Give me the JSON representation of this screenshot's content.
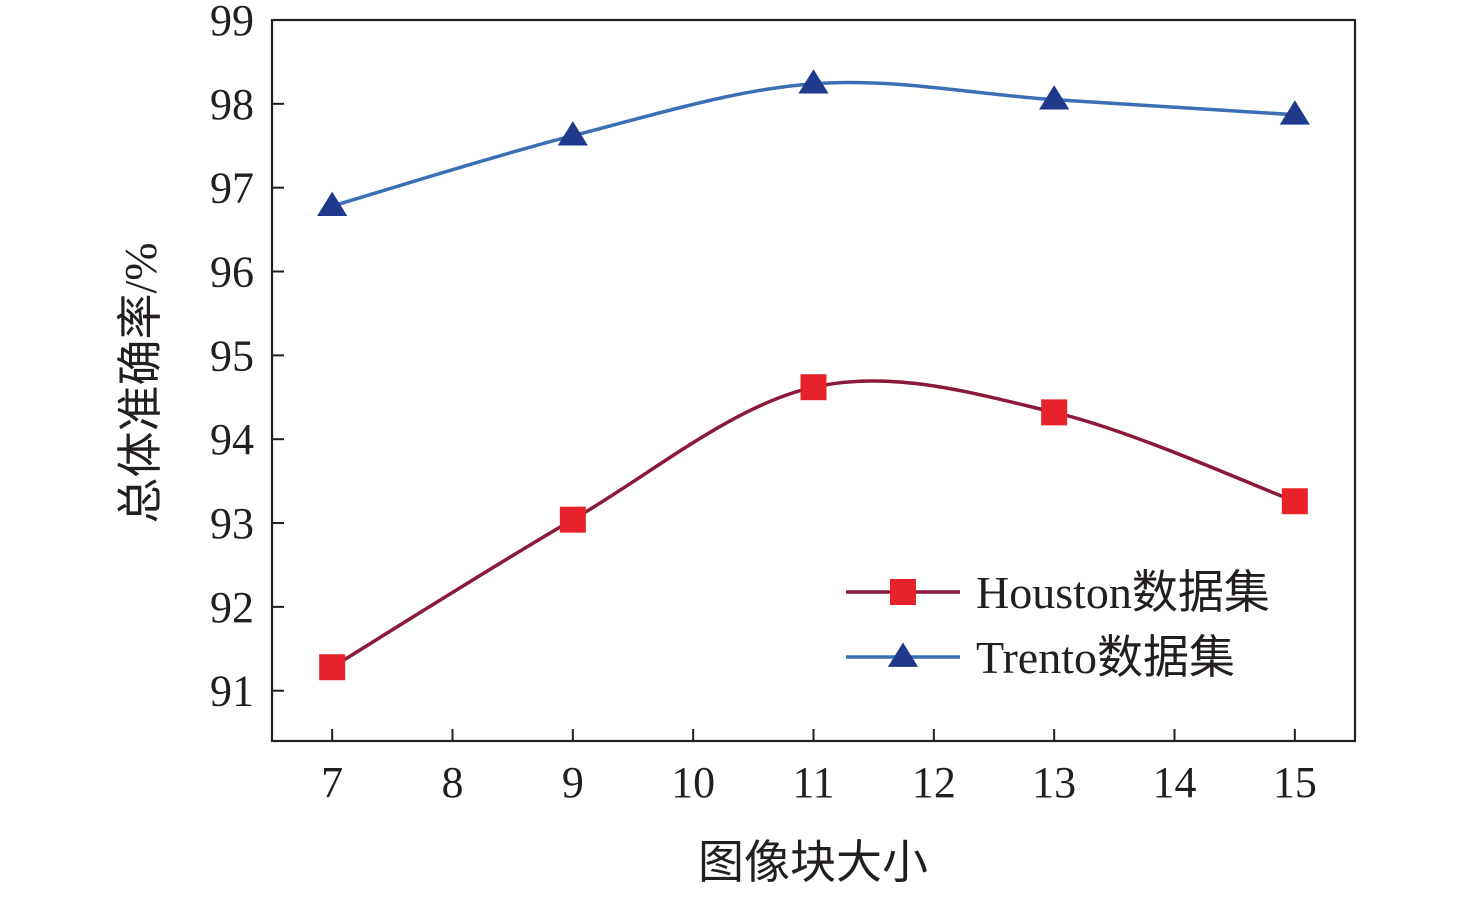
{
  "chart_data": {
    "type": "line",
    "title": "",
    "xlabel": "图像块大小",
    "ylabel": "总体准确率/%",
    "x": [
      7,
      9,
      11,
      13,
      15
    ],
    "x_ticks": [
      "7",
      "8",
      "9",
      "10",
      "11",
      "12",
      "13",
      "14",
      "15"
    ],
    "y_ticks": [
      "91",
      "92",
      "93",
      "94",
      "95",
      "96",
      "97",
      "98",
      "99"
    ],
    "xlim": [
      6.5,
      15.5
    ],
    "ylim": [
      90.4,
      99
    ],
    "grid": false,
    "legend_position": "bottom-right",
    "series": [
      {
        "name": "Houston数据集",
        "values": [
          91.28,
          93.04,
          94.62,
          94.32,
          93.26
        ],
        "color": "#8b1a3a",
        "marker": "square",
        "marker_color": "#e8222b"
      },
      {
        "name": "Trento数据集",
        "values": [
          96.78,
          97.62,
          98.24,
          98.05,
          97.87
        ],
        "color": "#3a6fb6",
        "marker": "triangle",
        "marker_color": "#1f3a8c"
      }
    ]
  }
}
